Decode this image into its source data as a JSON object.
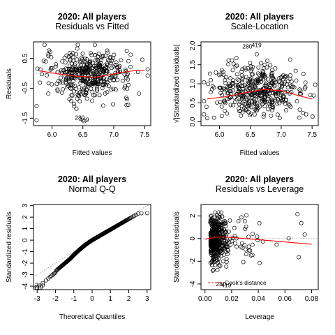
{
  "chart_data": [
    {
      "type": "scatter",
      "title": "2020: All players",
      "subtitle": "Residuals vs Fitted",
      "xlabel": "Fitted values",
      "ylabel": "Residuals",
      "xlim": [
        5.7,
        7.6
      ],
      "ylim": [
        -1.75,
        1.05
      ],
      "xticks": [
        6.0,
        6.5,
        7.0,
        7.5
      ],
      "xtick_labels": [
        "6.0",
        "6.5",
        "7.0",
        "7.5"
      ],
      "yticks": [
        -1.5,
        -0.5,
        0.5
      ],
      "ytick_labels": [
        "-1.5",
        "-0.5",
        "0.5"
      ],
      "hline": 0,
      "smooth_line": {
        "x": [
          5.8,
          6.1,
          6.4,
          6.7,
          7.0,
          7.3,
          7.5
        ],
        "y": [
          0.08,
          -0.02,
          -0.1,
          -0.13,
          -0.02,
          0.08,
          0.1
        ],
        "color": "#ff0000"
      },
      "outlier_labels": [
        {
          "label": "280",
          "x": 6.45,
          "y": -1.48
        },
        {
          "label": "419",
          "x": 6.52,
          "y": -1.55
        }
      ],
      "n_points": 420,
      "point_cloud": {
        "x_center": 6.6,
        "x_sd": 0.35,
        "x_range": [
          5.75,
          7.55
        ],
        "y_sd": 0.45,
        "y_range": [
          -1.6,
          0.95
        ]
      }
    },
    {
      "type": "scatter",
      "title": "2020: All players",
      "subtitle": "Scale-Location",
      "xlabel": "Fitted values",
      "ylabel": "√|Standardized residuals|",
      "xlim": [
        5.7,
        7.6
      ],
      "ylim": [
        -0.1,
        2.1
      ],
      "xticks": [
        6.0,
        6.5,
        7.0,
        7.5
      ],
      "xtick_labels": [
        "6.0",
        "6.5",
        "7.0",
        "7.5"
      ],
      "yticks": [
        0.0,
        0.5,
        1.0,
        1.5,
        2.0
      ],
      "ytick_labels": [
        "0.0",
        "0.5",
        "1.0",
        "1.5",
        "2.0"
      ],
      "smooth_line": {
        "x": [
          5.8,
          6.1,
          6.4,
          6.7,
          7.0,
          7.3,
          7.5
        ],
        "y": [
          0.6,
          0.66,
          0.76,
          0.85,
          0.82,
          0.68,
          0.6
        ],
        "color": "#ff0000"
      },
      "outlier_labels": [
        {
          "label": "280",
          "x": 6.45,
          "y": 1.98
        },
        {
          "label": "419",
          "x": 6.6,
          "y": 2.02
        }
      ],
      "n_points": 420,
      "point_cloud": {
        "x_center": 6.6,
        "x_sd": 0.35,
        "x_range": [
          5.75,
          7.55
        ],
        "y_range": [
          0.0,
          2.0
        ]
      }
    },
    {
      "type": "scatter",
      "title": "2020: All players",
      "subtitle": "Normal Q-Q",
      "xlabel": "Theoretical Quantiles",
      "ylabel": "Standardized residuals",
      "xlim": [
        -3.2,
        3.2
      ],
      "ylim": [
        -4.3,
        3.1
      ],
      "xticks": [
        -3,
        -2,
        -1,
        0,
        1,
        2,
        3
      ],
      "xtick_labels": [
        "-3",
        "-2",
        "-1",
        "0",
        "1",
        "2",
        "3"
      ],
      "yticks": [
        -4,
        -3,
        -2,
        -1,
        0,
        1,
        2,
        3
      ],
      "ytick_labels": [
        "-4",
        "-3",
        "-2",
        "-1",
        "0",
        "1",
        "2",
        "3"
      ],
      "reference_line": {
        "x": [
          -3.2,
          3.2
        ],
        "y": [
          -3.2,
          3.2
        ],
        "style": "dotted",
        "color": "#999999"
      },
      "outlier_labels": [
        {
          "label": "280",
          "x": -2.85,
          "y": -3.9
        },
        {
          "label": "419",
          "x": -2.95,
          "y": -4.1
        }
      ],
      "n_points": 420,
      "qq": {
        "x_range": [
          -3.0,
          3.0
        ],
        "y_low": -4.15,
        "y_high": 2.35
      }
    },
    {
      "type": "scatter",
      "title": "2020: All players",
      "subtitle": "Residuals vs Leverage",
      "xlabel": "Leverage",
      "ylabel": "Standardized residuals",
      "xlim": [
        -0.003,
        0.085
      ],
      "ylim": [
        -4.5,
        3.0
      ],
      "xticks": [
        0.0,
        0.02,
        0.04,
        0.06,
        0.08
      ],
      "xtick_labels": [
        "0.00",
        "0.02",
        "0.04",
        "0.06",
        "0.08"
      ],
      "yticks": [
        -4,
        -2,
        0,
        2
      ],
      "ytick_labels": [
        "-4",
        "-2",
        "0",
        "2"
      ],
      "hline": 0,
      "smooth_line": {
        "x": [
          0.0,
          0.01,
          0.02,
          0.04,
          0.06,
          0.08
        ],
        "y": [
          -0.05,
          0.15,
          0.1,
          -0.1,
          -0.3,
          -0.5
        ],
        "color": "#ff0000"
      },
      "legend": {
        "label": "Cook's distance",
        "color": "#ff0000",
        "style": "dashed",
        "position": "bottom-left"
      },
      "outlier_labels": [
        {
          "label": "280",
          "x": 0.012,
          "y": -4.0
        },
        {
          "label": "419",
          "x": 0.016,
          "y": -4.1
        }
      ],
      "n_points": 420,
      "point_cloud": {
        "x_center": 0.01,
        "x_range": [
          0.0,
          0.082
        ],
        "y_range": [
          -4.2,
          2.3
        ]
      }
    }
  ]
}
